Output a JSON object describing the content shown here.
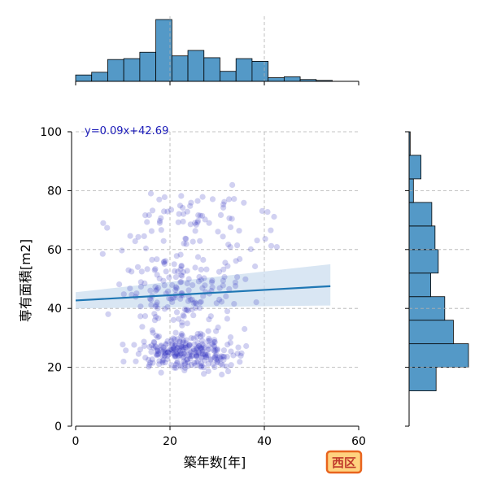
{
  "chart_data": {
    "type": "scatter",
    "xlabel": "築年数[年]",
    "ylabel": "専有面積[m2]",
    "xlim": [
      0,
      60
    ],
    "ylim": [
      0,
      100
    ],
    "x_ticks": [
      "0",
      "20",
      "40",
      "60"
    ],
    "y_ticks": [
      "0",
      "20",
      "40",
      "60",
      "80",
      "100"
    ],
    "grid": true,
    "regression": {
      "label": "y=0.09x+42.69",
      "slope": 0.09,
      "intercept": 42.69,
      "x_range": [
        0,
        54
      ],
      "ci_upper": [
        45.5,
        55.0
      ],
      "ci_lower": [
        40.0,
        41.0
      ],
      "line_color": "#1f77b4",
      "band_color": "#c9dcee",
      "label_color": "#1a1ab8"
    },
    "point_color": "#2d2dbf",
    "badge": {
      "label": "西区",
      "fill": "#ffd27f",
      "border": "#e8641e",
      "text_color": "#c0392b"
    },
    "marginal_x": {
      "bin_edges": [
        0,
        3.4,
        6.8,
        10.2,
        13.6,
        17,
        20.4,
        23.8,
        27.2,
        30.6,
        34,
        37.4,
        40.8,
        44.2,
        47.6,
        51,
        54.4
      ],
      "counts": [
        7,
        10,
        24,
        25,
        32,
        68,
        28,
        34,
        26,
        11,
        25,
        22,
        4,
        5,
        2,
        1
      ]
    },
    "marginal_y": {
      "bin_edges": [
        12,
        20,
        28,
        36,
        44,
        52,
        60,
        68,
        76,
        84,
        92,
        100
      ],
      "counts": [
        25,
        55,
        41,
        33,
        20,
        27,
        24,
        21,
        4,
        11,
        1
      ]
    },
    "bar_color": "#5499c7"
  }
}
